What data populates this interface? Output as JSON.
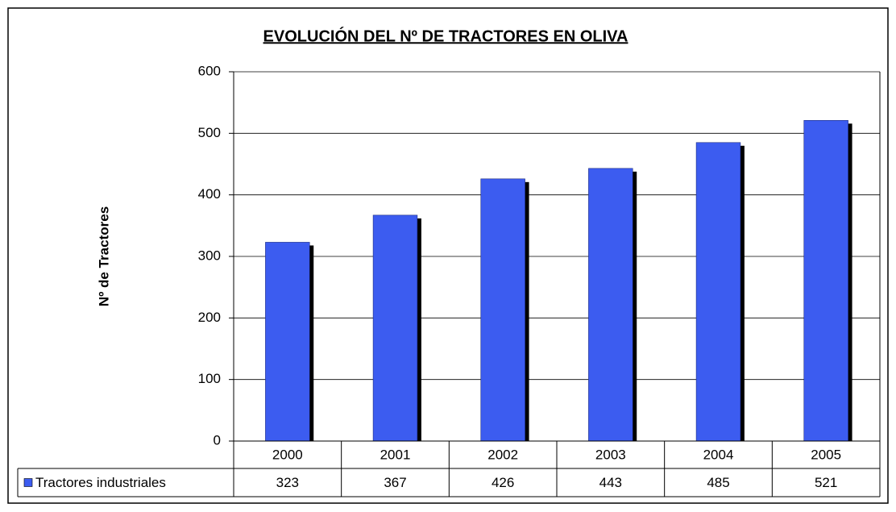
{
  "chart_data": {
    "type": "bar",
    "title": "EVOLUCIÓN DEL Nº DE TRACTORES EN OLIVA",
    "y_label": "Nº de Tractores",
    "categories": [
      "2000",
      "2001",
      "2002",
      "2003",
      "2004",
      "2005"
    ],
    "series": [
      {
        "name": "Tractores industriales",
        "color": "#3c5cf0",
        "values": [
          323,
          367,
          426,
          443,
          485,
          521
        ]
      }
    ],
    "ylim": [
      0,
      600
    ],
    "yticks": [
      0,
      100,
      200,
      300,
      400,
      500,
      600
    ],
    "grid": true,
    "data_table": true
  }
}
